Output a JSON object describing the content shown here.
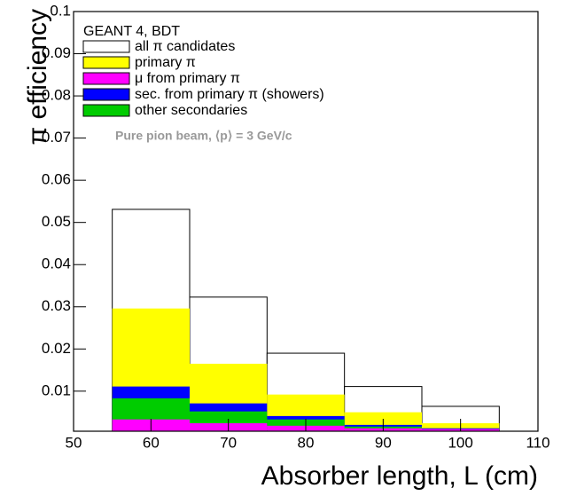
{
  "chart_data": {
    "type": "histogram",
    "legend_header": "GEANT 4, BDT",
    "annotation": "Pure pion beam,  ⟨p⟩ = 3 GeV/c",
    "x_label": "Absorber length,   L (cm)",
    "y_label": "π efficiency",
    "bins": [
      55,
      65,
      75,
      85,
      95,
      105
    ],
    "series": [
      {
        "name": "all   π candidates",
        "color": "#ffffff",
        "values": [
          0.0531,
          0.0323,
          0.019,
          0.0111,
          0.0064
        ]
      },
      {
        "name": "primary   π",
        "color": "#ffff00",
        "values": [
          0.0296,
          0.0165,
          0.0092,
          0.005,
          0.0024
        ]
      },
      {
        "name": "μ from primary   π",
        "color": "#ff00ff",
        "values": [
          0.0033,
          0.0024,
          0.0018,
          0.0012,
          0.001
        ]
      },
      {
        "name": "sec. from primary   π (showers)",
        "color": "#0000ff",
        "values": [
          0.0111,
          0.0071,
          0.0041,
          0.002,
          0.0012
        ]
      },
      {
        "name": "other secondaries",
        "color": "#00cc00",
        "values": [
          0.0083,
          0.0052,
          0.0033,
          0.0016,
          0.001
        ]
      }
    ],
    "xlim": [
      50,
      110
    ],
    "xticks": [
      50,
      60,
      70,
      80,
      90,
      100,
      110
    ],
    "ylim": [
      0.0005,
      0.1
    ],
    "yticks": [
      0.01,
      0.02,
      0.03,
      0.04,
      0.05,
      0.06,
      0.07,
      0.08,
      0.09,
      0.1
    ]
  }
}
